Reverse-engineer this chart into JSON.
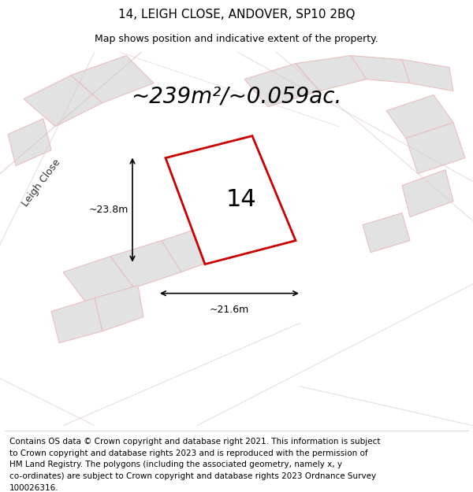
{
  "title": "14, LEIGH CLOSE, ANDOVER, SP10 2BQ",
  "subtitle": "Map shows position and indicative extent of the property.",
  "area_text": "~239m²/~0.059ac.",
  "plot_number": "14",
  "dim_width": "~21.6m",
  "dim_height": "~23.8m",
  "street_label": "Leigh Close",
  "map_bg_color": "#eeeeee",
  "plot_fill": "#ffffff",
  "plot_edge_color": "#cc0000",
  "neighbor_fill": "#e2e2e2",
  "neighbor_edge_color": "#e8c0c0",
  "footer_lines": [
    "Contains OS data © Crown copyright and database right 2021. This information is subject",
    "to Crown copyright and database rights 2023 and is reproduced with the permission of",
    "HM Land Registry. The polygons (including the associated geometry, namely x, y",
    "co-ordinates) are subject to Crown copyright and database rights 2023 Ordnance Survey",
    "100026316."
  ],
  "title_fontsize": 11,
  "subtitle_fontsize": 9,
  "area_fontsize": 20,
  "plot_num_fontsize": 22,
  "dim_fontsize": 9,
  "footer_fontsize": 7.5,
  "street_fontsize": 9
}
